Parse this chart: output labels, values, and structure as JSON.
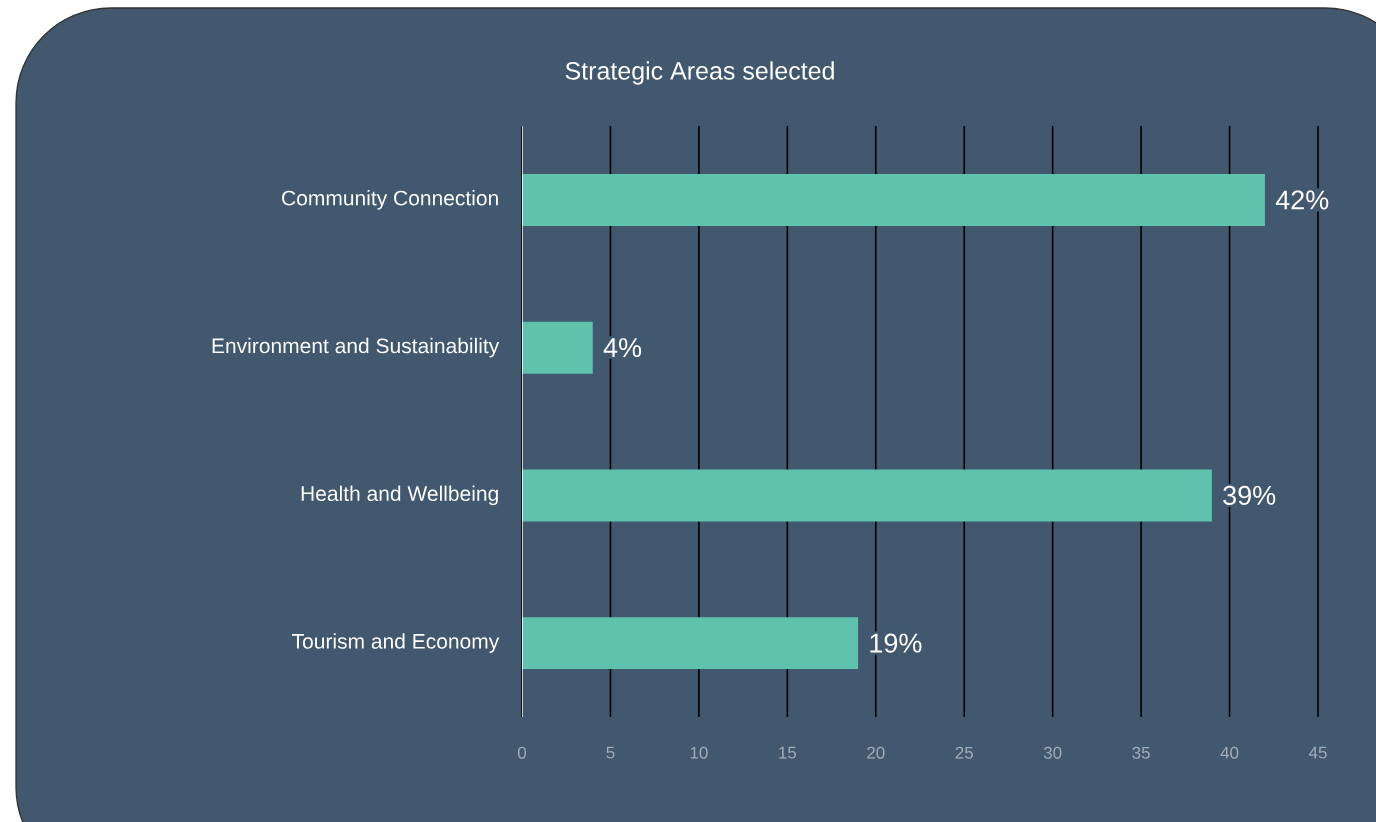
{
  "chart_data": {
    "type": "bar",
    "orientation": "horizontal",
    "title": "Strategic Areas selected",
    "categories": [
      "Community Connection",
      "Environment and Sustainability",
      "Health and Wellbeing",
      "Tourism and Economy"
    ],
    "values": [
      42,
      4,
      39,
      19
    ],
    "color": "#5fc2ad",
    "value_labels": [
      "42%",
      "4%",
      "39%",
      "19%"
    ],
    "xlim": [
      0,
      45
    ],
    "xticks": [
      0,
      5,
      10,
      15,
      20,
      25,
      30,
      35,
      40,
      45
    ],
    "grid": "x"
  }
}
